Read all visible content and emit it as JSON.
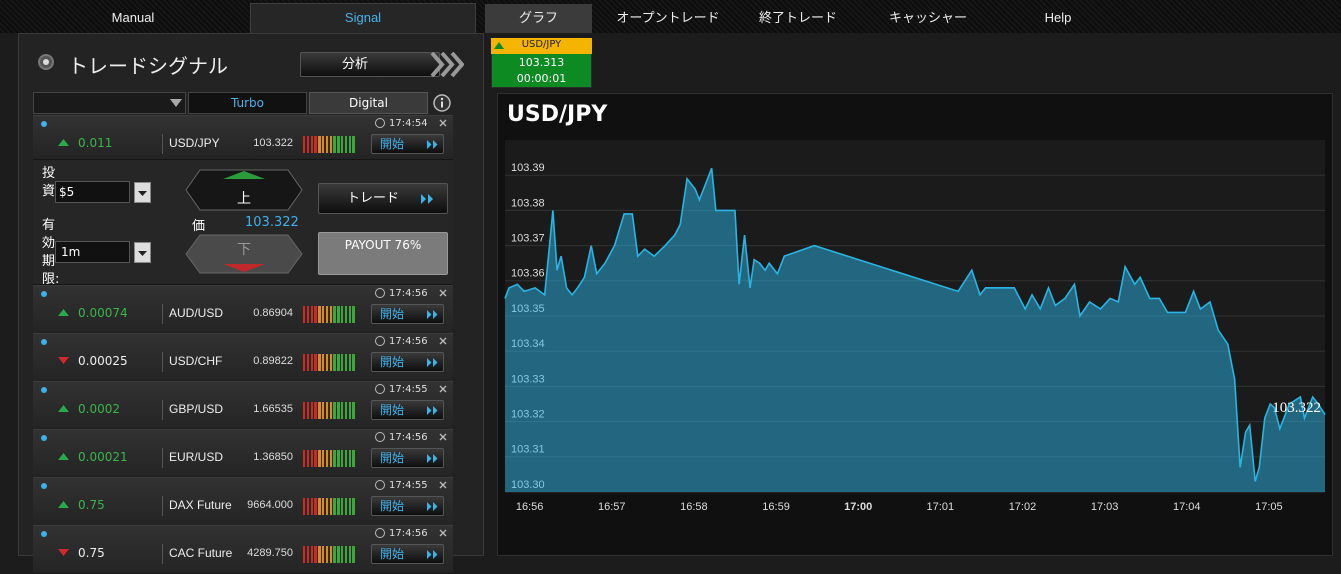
{
  "nav": [
    "Manual",
    "Signal",
    "グラフ",
    "オープントレード",
    "終了トレード",
    "キャッシャー",
    "Help"
  ],
  "signal_panel": {
    "title": "トレードシグナル",
    "analysis_button": "分析",
    "tabs": [
      "Turbo",
      "Digital"
    ],
    "signals": [
      {
        "direction": "up",
        "change": "0.011",
        "symbol": "USD/JPY",
        "price": "103.322",
        "time": "17:4:54",
        "button": "開始"
      },
      {
        "direction": "up",
        "change": "0.00074",
        "symbol": "AUD/USD",
        "price": "0.86904",
        "time": "17:4:56",
        "button": "開始"
      },
      {
        "direction": "down",
        "change": "0.00025",
        "symbol": "USD/CHF",
        "price": "0.89822",
        "time": "17:4:56",
        "button": "開始"
      },
      {
        "direction": "up",
        "change": "0.0002",
        "symbol": "GBP/USD",
        "price": "1.66535",
        "time": "17:4:55",
        "button": "開始"
      },
      {
        "direction": "up",
        "change": "0.00021",
        "symbol": "EUR/USD",
        "price": "1.36850",
        "time": "17:4:56",
        "button": "開始"
      },
      {
        "direction": "up",
        "change": "0.75",
        "symbol": "DAX Future",
        "price": "9664.000",
        "time": "17:4:55",
        "button": "開始"
      },
      {
        "direction": "down",
        "change": "0.75",
        "symbol": "CAC Future",
        "price": "4289.750",
        "time": "17:4:56",
        "button": "開始"
      }
    ],
    "trade_form": {
      "investment_label": "投資",
      "investment": "$5",
      "expiry_label": "有効期限:",
      "expiry": "1m",
      "up": "上",
      "down": "下",
      "price_label": "価",
      "price": "103.322",
      "trade_button": "トレード",
      "payout": "PAYOUT 76%"
    }
  },
  "ticker": {
    "symbol": "USD/JPY",
    "price": "103.313",
    "timer": "00:00:01"
  },
  "chart_data": {
    "type": "area",
    "title": "USD/JPY",
    "color": "#2ab4e4",
    "grid": true,
    "x": [
      "16:55:42",
      "16:55:45",
      "16:55:51",
      "16:55:56",
      "16:56:04",
      "16:56:11",
      "16:56:15",
      "16:56:17",
      "16:56:20",
      "16:56:23",
      "16:56:27",
      "16:56:31",
      "16:56:35",
      "16:56:40",
      "16:56:45",
      "16:56:49",
      "16:56:55",
      "16:57:02",
      "16:57:09",
      "16:57:15",
      "16:57:19",
      "16:57:24",
      "16:57:31",
      "16:57:39",
      "16:57:46",
      "16:57:50",
      "16:57:55",
      "16:58:01",
      "16:58:04",
      "16:58:08",
      "16:58:13",
      "16:58:16",
      "16:58:30",
      "16:58:33",
      "16:58:37",
      "16:58:41",
      "16:58:44",
      "16:58:48",
      "16:58:52",
      "16:58:55",
      "16:59:01",
      "16:59:06",
      "16:59:28",
      "17:01:13",
      "17:01:23",
      "17:01:29",
      "17:01:33",
      "17:01:54",
      "17:02:02",
      "17:02:07",
      "17:02:13",
      "17:02:19",
      "17:02:24",
      "17:02:31",
      "17:02:38",
      "17:02:42",
      "17:02:49",
      "17:02:57",
      "17:03:04",
      "17:03:10",
      "17:03:15",
      "17:03:22",
      "17:03:26",
      "17:03:33",
      "17:03:40",
      "17:03:46",
      "17:03:59",
      "17:04:05",
      "17:04:10",
      "17:04:17",
      "17:04:23",
      "17:04:30",
      "17:04:35",
      "17:04:39",
      "17:04:43",
      "17:04:46",
      "17:04:50",
      "17:04:53",
      "17:04:57",
      "17:05:01",
      "17:05:04",
      "17:05:08",
      "17:05:12",
      "17:05:15",
      "17:05:23",
      "17:05:26",
      "17:05:32",
      "17:05:36",
      "17:05:41"
    ],
    "values": [
      103.355,
      103.358,
      103.359,
      103.357,
      103.358,
      103.356,
      103.372,
      103.38,
      103.363,
      103.367,
      103.358,
      103.356,
      103.358,
      103.361,
      103.37,
      103.362,
      103.365,
      103.37,
      103.379,
      103.379,
      103.367,
      103.369,
      103.367,
      103.37,
      103.373,
      103.376,
      103.389,
      103.386,
      103.383,
      103.387,
      103.392,
      103.38,
      103.38,
      103.359,
      103.373,
      103.358,
      103.366,
      103.365,
      103.363,
      103.365,
      103.362,
      103.367,
      103.37,
      103.357,
      103.363,
      103.356,
      103.358,
      103.358,
      103.352,
      103.356,
      103.352,
      103.358,
      103.353,
      103.355,
      103.359,
      103.35,
      103.354,
      103.352,
      103.355,
      103.354,
      103.364,
      103.359,
      103.361,
      103.355,
      103.355,
      103.351,
      103.351,
      103.357,
      103.352,
      103.354,
      103.346,
      103.342,
      103.332,
      103.307,
      103.317,
      103.319,
      103.303,
      103.307,
      103.321,
      103.325,
      103.324,
      103.318,
      103.322,
      103.325,
      103.327,
      103.321,
      103.327,
      103.325,
      103.322
    ],
    "xlim": [
      "16:55:42",
      "17:05:41"
    ],
    "xticks": [
      "16:56",
      "16:57",
      "16:58",
      "16:59",
      "17:00",
      "17:01",
      "17:02",
      "17:03",
      "17:04",
      "17:05"
    ],
    "ylim": [
      103.3,
      103.4
    ],
    "yticks": [
      {
        "value": 103.3,
        "label": "103.30"
      },
      103.31,
      103.32,
      103.33,
      103.34,
      103.35,
      103.36,
      103.37,
      103.38,
      103.39
    ]
  }
}
